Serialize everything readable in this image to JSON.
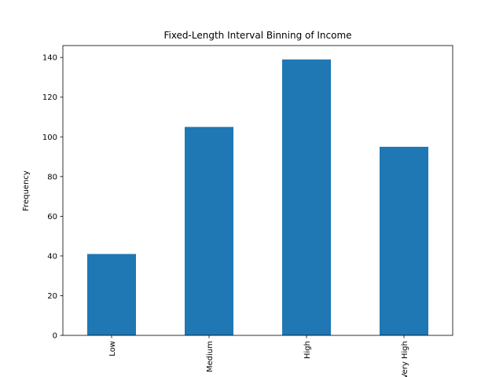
{
  "chart_data": {
    "type": "bar",
    "title": "Fixed-Length Interval Binning of Income",
    "xlabel": "",
    "ylabel": "Frequency",
    "categories": [
      "Low",
      "Medium",
      "High",
      "Very High"
    ],
    "values": [
      41,
      105,
      139,
      95
    ],
    "ylim": [
      0,
      146
    ],
    "yticks": [
      0,
      20,
      40,
      60,
      80,
      100,
      120,
      140
    ],
    "grid": false,
    "legend": "none",
    "bar_color": "#1f77b4",
    "x_tick_rotation": "vertical"
  }
}
